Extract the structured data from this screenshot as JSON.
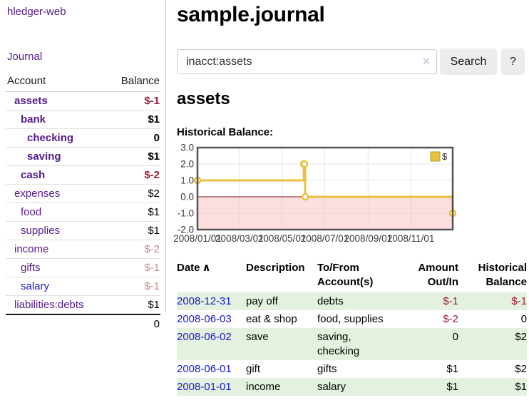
{
  "app": {
    "brand": "hledger-web"
  },
  "sidebar": {
    "journal_link": "Journal",
    "table_headers": {
      "account": "Account",
      "balance": "Balance"
    },
    "accounts": [
      {
        "name": "assets",
        "depth": 0,
        "bold": true,
        "balance": "$-1",
        "balance_style": "neg"
      },
      {
        "name": "bank",
        "depth": 1,
        "bold": true,
        "balance": "$1",
        "balance_style": ""
      },
      {
        "name": "checking",
        "depth": 2,
        "bold": true,
        "balance": "0",
        "balance_style": ""
      },
      {
        "name": "saving",
        "depth": 2,
        "bold": true,
        "balance": "$1",
        "balance_style": ""
      },
      {
        "name": "cash",
        "depth": 1,
        "bold": true,
        "balance": "$-2",
        "balance_style": "neg"
      },
      {
        "name": "expenses",
        "depth": 0,
        "bold": false,
        "balance": "$2",
        "balance_style": ""
      },
      {
        "name": "food",
        "depth": 1,
        "bold": false,
        "balance": "$1",
        "balance_style": ""
      },
      {
        "name": "supplies",
        "depth": 1,
        "bold": false,
        "balance": "$1",
        "balance_style": ""
      },
      {
        "name": "income",
        "depth": 0,
        "bold": false,
        "balance": "$-2",
        "balance_style": "negdim"
      },
      {
        "name": "gifts",
        "depth": 1,
        "bold": false,
        "balance": "$-1",
        "balance_style": "negdim"
      },
      {
        "name": "salary",
        "depth": 1,
        "bold": false,
        "balance": "$-1",
        "balance_style": "negdim",
        "link": "blue"
      },
      {
        "name": "liabilities:debts",
        "depth": 0,
        "bold": false,
        "balance": "$1",
        "balance_style": ""
      }
    ],
    "total": "0"
  },
  "header": {
    "title": "sample.journal"
  },
  "search": {
    "value": "inacct:assets",
    "clear_icon": "×",
    "button": "Search",
    "help_button": "?"
  },
  "account_page": {
    "title": "assets",
    "chart_label": "Historical Balance:"
  },
  "chart_data": {
    "type": "line",
    "step": true,
    "series_name": "$",
    "legend_position": "top-right",
    "x_domain": [
      "2008-01-01",
      "2008-12-31"
    ],
    "ylim": [
      -2,
      3
    ],
    "y_ticks": [
      3.0,
      2.0,
      1.0,
      0.0,
      -1.0,
      -2.0
    ],
    "x_ticks": [
      "2008/01/01",
      "2008/03/01",
      "2008/05/01",
      "2008/07/01",
      "2008/09/01",
      "2008/11/01"
    ],
    "points": [
      {
        "date": "2008-01-01",
        "value": 1
      },
      {
        "date": "2008-06-01",
        "value": 2
      },
      {
        "date": "2008-06-02",
        "value": 2
      },
      {
        "date": "2008-06-03",
        "value": 0
      },
      {
        "date": "2008-12-31",
        "value": -1
      }
    ],
    "grid": true
  },
  "register": {
    "headers": {
      "date": "Date",
      "description": "Description",
      "accounts": "To/From Account(s)",
      "amount": "Amount Out/In",
      "balance": "Historical Balance"
    },
    "sort_icon": "∧",
    "rows": [
      {
        "date": "2008-12-31",
        "description": "pay off",
        "accounts": "debts",
        "amount": "$-1",
        "amount_style": "neg",
        "balance": "$-1",
        "balance_style": "neg"
      },
      {
        "date": "2008-06-03",
        "description": "eat & shop",
        "accounts": "food, supplies",
        "amount": "$-2",
        "amount_style": "neg",
        "balance": "0",
        "balance_style": ""
      },
      {
        "date": "2008-06-02",
        "description": "save",
        "accounts": "saving, checking",
        "amount": "0",
        "amount_style": "",
        "balance": "$2",
        "balance_style": ""
      },
      {
        "date": "2008-06-01",
        "description": "gift",
        "accounts": "gifts",
        "amount": "$1",
        "amount_style": "",
        "balance": "$2",
        "balance_style": ""
      },
      {
        "date": "2008-01-01",
        "description": "income",
        "accounts": "salary",
        "amount": "$1",
        "amount_style": "",
        "balance": "$1",
        "balance_style": ""
      }
    ]
  },
  "colors": {
    "link_purple": "#551a8b",
    "link_blue": "#1b18d1",
    "negative": "#9d1c30",
    "negative_dim": "#c98a8f",
    "row_green": "#e4f1de",
    "chart_line": "#e9c13e",
    "chart_fill_negative": "#fcdede",
    "chart_zero_line": "#7d1010",
    "chart_border": "#545454"
  }
}
